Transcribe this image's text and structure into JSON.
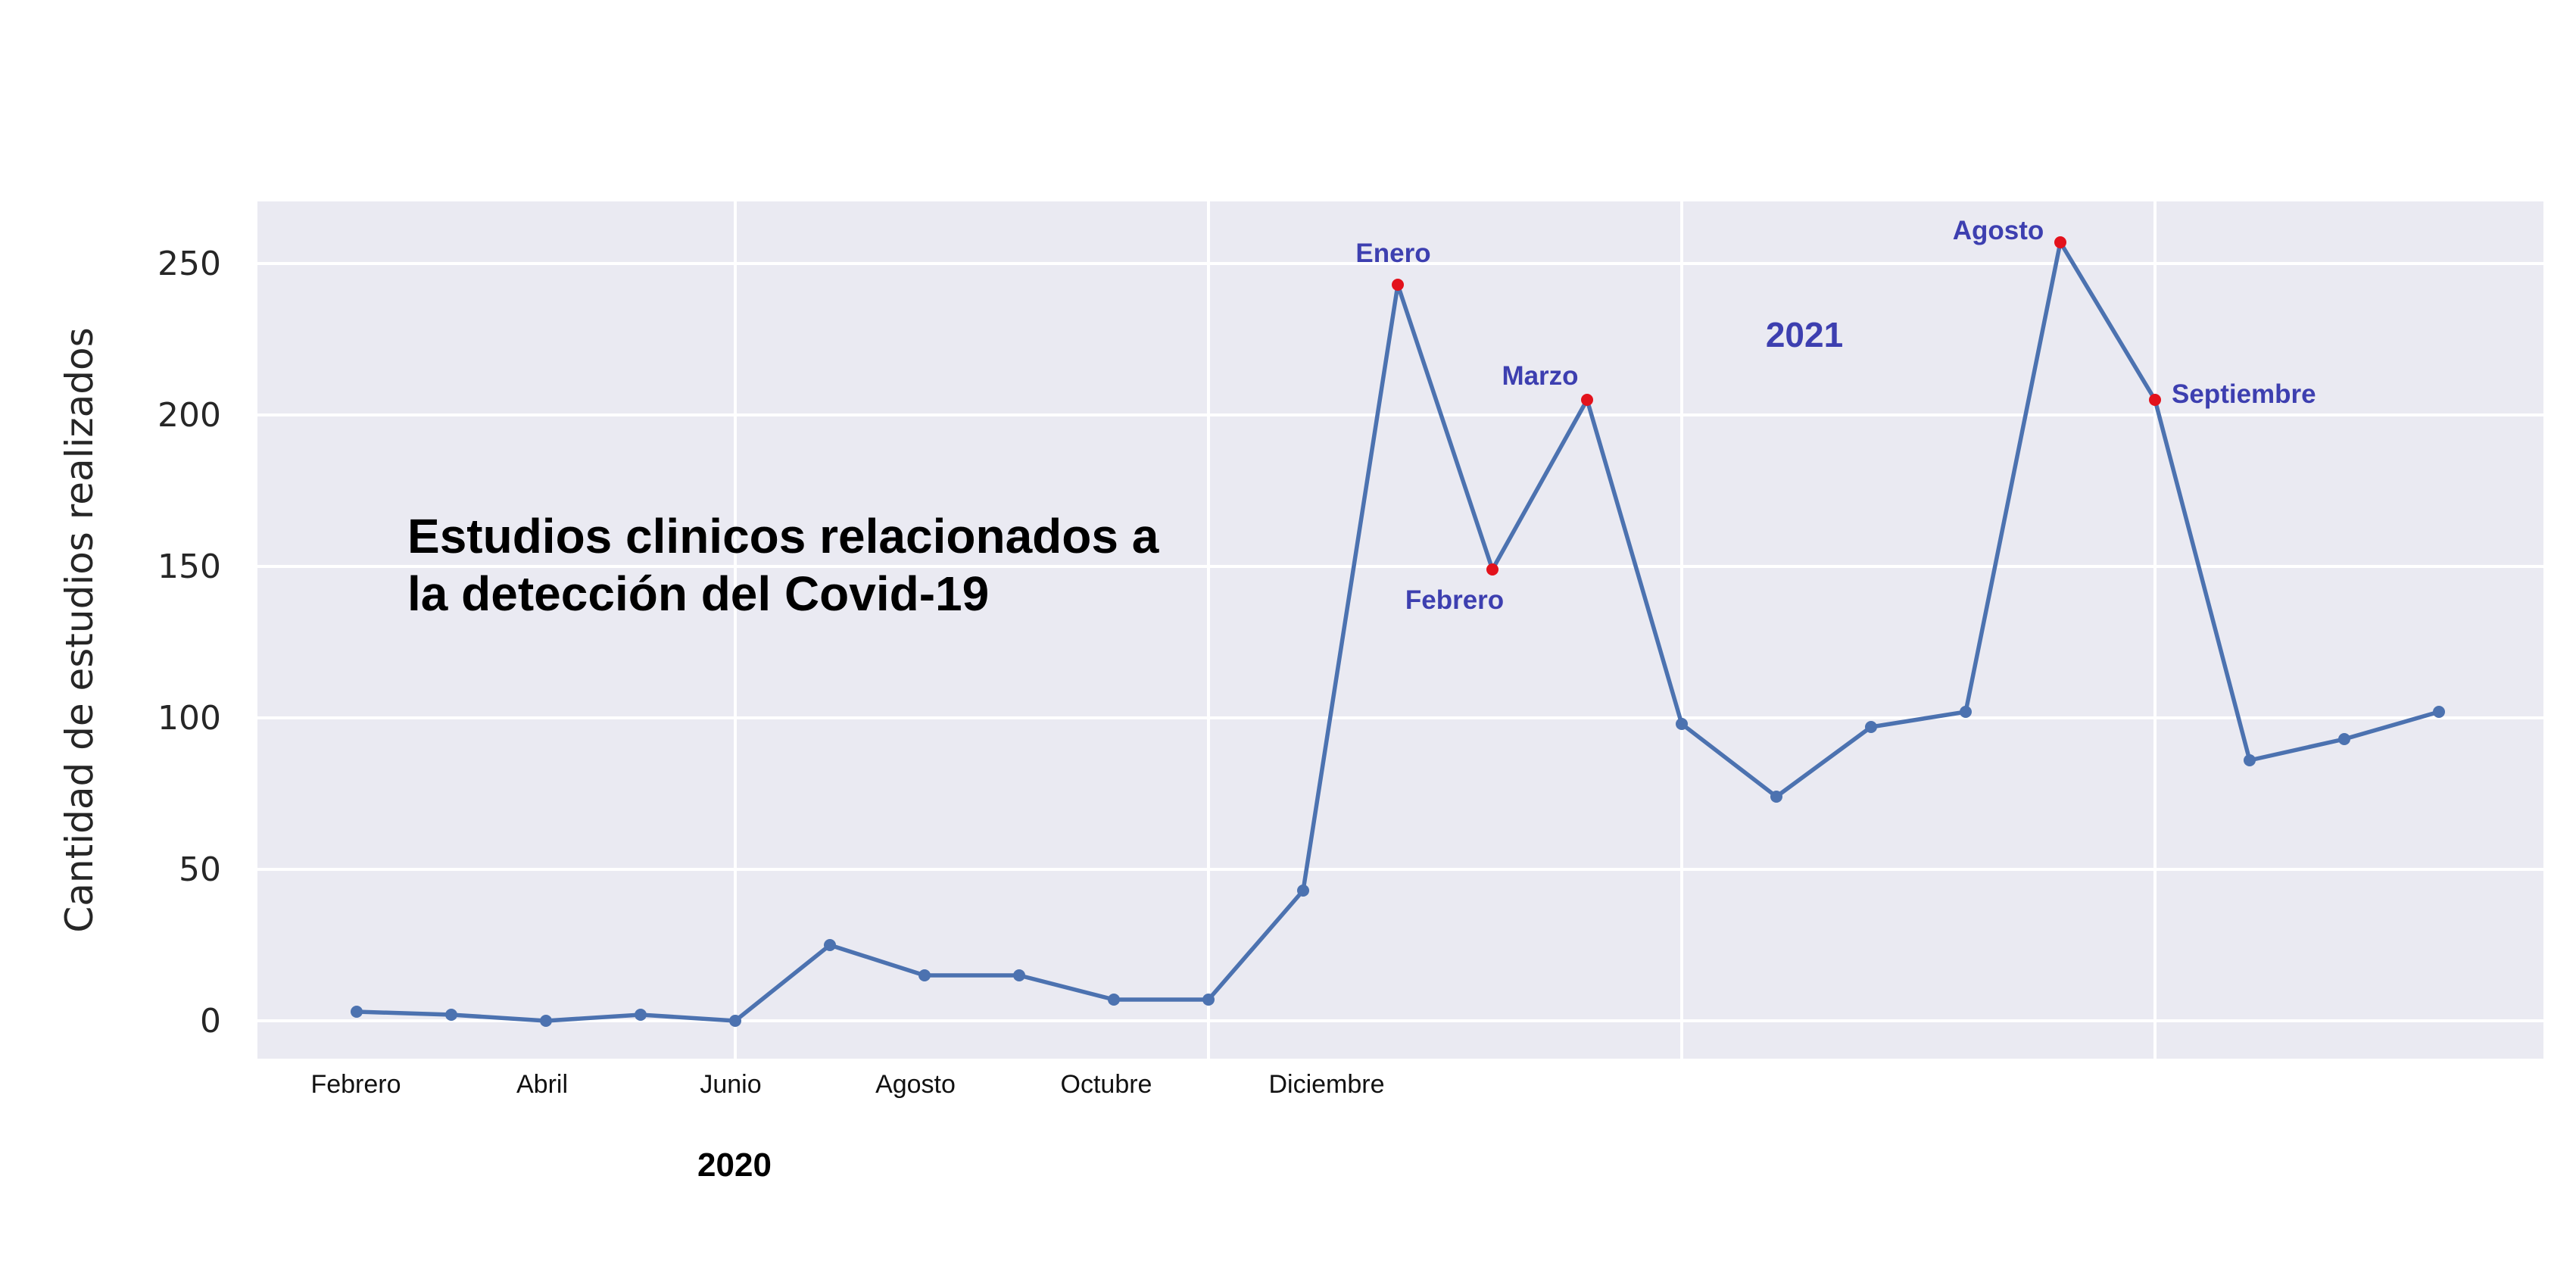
{
  "chart_data": {
    "type": "line",
    "title_lines": [
      "Estudios clinicos relacionados a",
      "la detección del Covid-19"
    ],
    "ylabel": "Cantidad de estudios realizados",
    "xlabel": "",
    "ylim": [
      -12,
      270
    ],
    "yticks": [
      0,
      50,
      100,
      150,
      200,
      250
    ],
    "grid": true,
    "x_tick_labels": [
      "Febrero",
      "Abril",
      "Junio",
      "Agosto",
      "Octubre",
      "Diciembre"
    ],
    "year_labels": [
      "2020",
      "2021"
    ],
    "series": [
      {
        "x": [
          "2020-02",
          "2020-03",
          "2020-04",
          "2020-05",
          "2020-06",
          "2020-07",
          "2020-08",
          "2020-09",
          "2020-10",
          "2020-11",
          "2020-12",
          "2021-01",
          "2021-02",
          "2021-03",
          "2021-04",
          "2021-05",
          "2021-06",
          "2021-07",
          "2021-08",
          "2021-09",
          "2021-10",
          "2021-11",
          "2021-12"
        ],
        "values": [
          3,
          2,
          0,
          2,
          0,
          25,
          15,
          15,
          7,
          7,
          43,
          243,
          149,
          205,
          98,
          74,
          97,
          102,
          257,
          205,
          86,
          93,
          102
        ]
      }
    ],
    "annotations": [
      {
        "label": "Enero",
        "x": "2021-01",
        "y": 243
      },
      {
        "label": "Febrero",
        "x": "2021-02",
        "y": 149
      },
      {
        "label": "Marzo",
        "x": "2021-03",
        "y": 205
      },
      {
        "label": "Agosto",
        "x": "2021-08",
        "y": 257
      },
      {
        "label": "Septiembre",
        "x": "2021-09",
        "y": 205
      }
    ],
    "colors": {
      "background": "#eaeaf2",
      "line": "#4c72b0",
      "highlight": "#e3121c",
      "annotation": "#3d3fb0"
    }
  }
}
